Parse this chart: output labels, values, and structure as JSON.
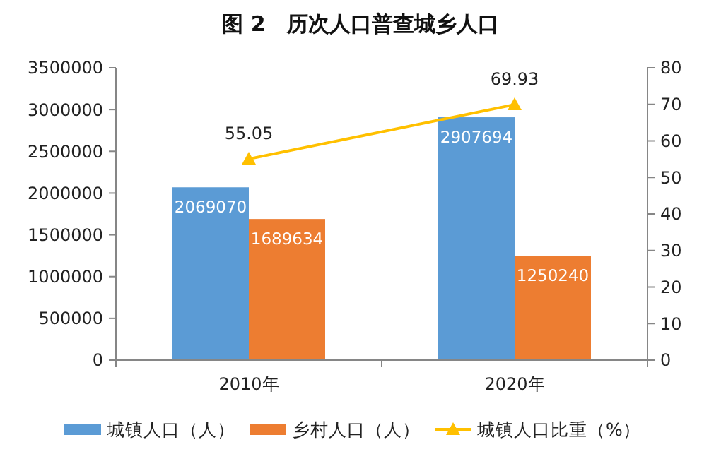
{
  "chart_data": {
    "type": "bar",
    "title": "图 2　历次人口普查城乡人口",
    "categories": [
      "2010年",
      "2020年"
    ],
    "series": [
      {
        "name": "城镇人口（人）",
        "color": "#5b9bd5",
        "values": [
          2069070,
          2907694
        ]
      },
      {
        "name": "乡村人口（人）",
        "color": "#ed7d31",
        "values": [
          1689634,
          1250240
        ]
      },
      {
        "name": "城镇人口比重（%）",
        "type": "line",
        "axis": "y2",
        "color": "#ffc000",
        "values": [
          55.05,
          69.93
        ],
        "marker": "triangle"
      }
    ],
    "ylim": [
      0,
      3500000
    ],
    "yticks": [
      0,
      500000,
      1000000,
      1500000,
      2000000,
      2500000,
      3000000,
      3500000
    ],
    "y2lim": [
      0,
      80
    ],
    "y2ticks": [
      0,
      10,
      20,
      30,
      40,
      50,
      60,
      70,
      80
    ],
    "data_labels": true,
    "legend": "bottom",
    "grid": false
  }
}
